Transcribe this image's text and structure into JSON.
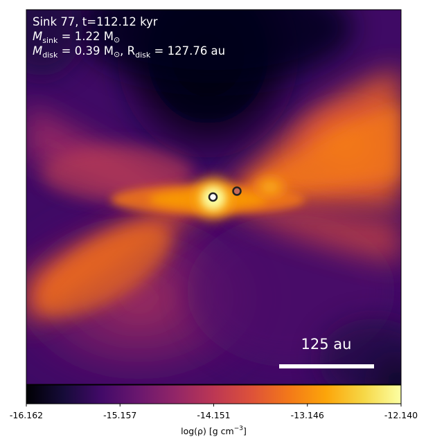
{
  "annotation": {
    "line1": "Sink 77, t=112.12 kyr",
    "line2_prefix": "M",
    "line2_sub": "sink",
    "line2_rest": " = 1.22 M",
    "line2_sun": "⊙",
    "line3_prefix": "M",
    "line3_sub": "disk",
    "line3_mid": " = 0.39 M",
    "line3_sun": "⊙",
    "line3_sep": ", R",
    "line3_sub2": "disk",
    "line3_rest": " = 127.76 au"
  },
  "scale_bar": {
    "label": "125 au"
  },
  "colorbar": {
    "ticks": [
      "-16.162",
      "-15.157",
      "-14.151",
      "-13.146",
      "-12.140"
    ],
    "label_prefix": "log(ρ) [g cm",
    "label_sup": "−3",
    "label_suffix": "]",
    "colormap": "inferno"
  },
  "sinks": [
    {
      "name": "primary-sink",
      "fill": "#ffffff"
    },
    {
      "name": "secondary-sink",
      "fill": "#c46a5a"
    }
  ]
}
